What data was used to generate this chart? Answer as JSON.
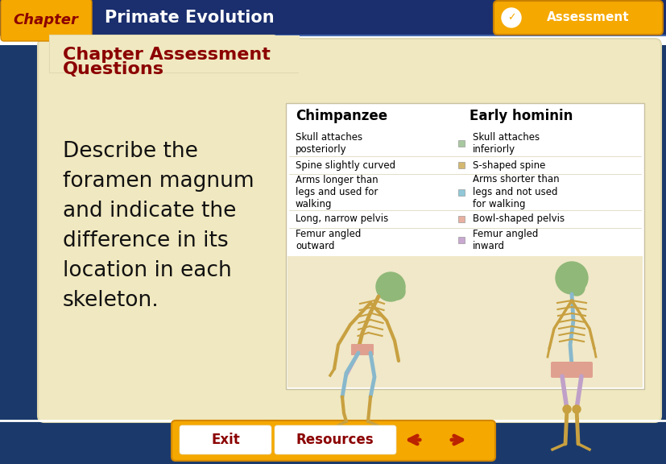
{
  "bg_color": "#1b3a6b",
  "chapter_tab_color": "#f5a800",
  "chapter_tab_text": "Chapter",
  "chapter_tab_text_color": "#8b0000",
  "header_bg_color": "#1b2f6e",
  "header_title": "Primate Evolution",
  "header_title_color": "#ffffff",
  "header_title_fontsize": 15,
  "assessment_btn_color": "#f5a800",
  "assessment_btn_text": "✓  Assessment",
  "assessment_btn_text_color": "#ffffff",
  "main_bg_color": "#f0e8c0",
  "section_title_line1": "Chapter Assessment",
  "section_title_line2": "Questions",
  "section_title_color": "#8b0000",
  "section_title_fontsize": 16,
  "body_text": "Describe the\nforamen magnum\nand indicate the\ndifference in its\nlocation in each\nskeleton.",
  "body_text_color": "#111111",
  "body_text_fontsize": 19,
  "table_bg": "#f8f8f0",
  "col1_header": "Chimpanzee",
  "col2_header": "Early hominin",
  "col_header_fontsize": 12,
  "table_rows": [
    {
      "col1": "Skull attaches\nposteriorly",
      "col2": "Skull attaches\ninferiorly",
      "dot_color": "#a8c8a0"
    },
    {
      "col1": "Spine slightly curved",
      "col2": "S-shaped spine",
      "dot_color": "#d4b870"
    },
    {
      "col1": "Arms longer than\nlegs and used for\nwalking",
      "col2": "Arms shorter than\nlegs and not used\nfor walking",
      "dot_color": "#90c8d8"
    },
    {
      "col1": "Long, narrow pelvis",
      "col2": "Bowl-shaped pelvis",
      "dot_color": "#e8b0a0"
    },
    {
      "col1": "Femur angled\noutward",
      "col2": "Femur angled\ninward",
      "dot_color": "#c8a8d0"
    }
  ],
  "table_fontsize": 8.5,
  "bottom_bar_color": "#1b3a6b",
  "exit_btn_text": "Exit",
  "resources_btn_text": "Resources",
  "btn_color": "#f5a800",
  "btn_text_color": "#8b0000",
  "arrow_color": "#bb2200",
  "skeleton_area_color": "#f0e8c0",
  "white_border_color": "#e0d8b0"
}
